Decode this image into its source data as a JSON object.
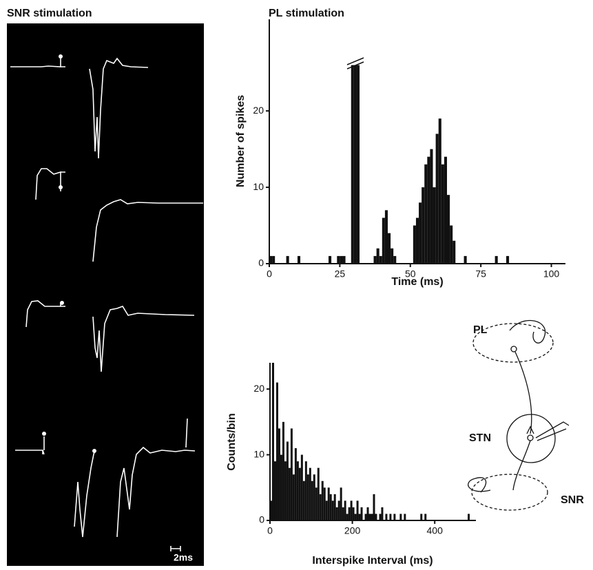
{
  "traces": {
    "title": "SNR stimulation",
    "scale_label": "2ms"
  },
  "diagram": {
    "labels": [
      "PL",
      "STN",
      "SNR"
    ]
  },
  "chart_data": [
    {
      "type": "histogram",
      "title": "PL stimulation",
      "x_label": "Time (ms)",
      "y_label": "Number of spikes",
      "bins": [
        0,
        1,
        2,
        3,
        4,
        5,
        6,
        7,
        8,
        9,
        10,
        11,
        12,
        13,
        14,
        15,
        16,
        17,
        18,
        19,
        20,
        21,
        22,
        23,
        24,
        25,
        26,
        27,
        28,
        29,
        30,
        31,
        32,
        33,
        34,
        35,
        36,
        37,
        38,
        39,
        40,
        41,
        42,
        43,
        44,
        45,
        46,
        47,
        48,
        49,
        50,
        51,
        52,
        53,
        54,
        55,
        56,
        57,
        58,
        59,
        60,
        61,
        62,
        63,
        64,
        65,
        66,
        67,
        68,
        69,
        70,
        71,
        72,
        73,
        74,
        75,
        76,
        77,
        78,
        79,
        80,
        81,
        82,
        83,
        84,
        85,
        86,
        87,
        88,
        89,
        90,
        91,
        92,
        93,
        94,
        95,
        96,
        97,
        98,
        99,
        100,
        101,
        102,
        103,
        104,
        105
      ],
      "counts": [
        1,
        1,
        0,
        0,
        0,
        0,
        1,
        0,
        0,
        0,
        1,
        0,
        0,
        0,
        0,
        0,
        0,
        0,
        0,
        0,
        0,
        1,
        0,
        0,
        1,
        1,
        1,
        0,
        0,
        26,
        26,
        26,
        0,
        0,
        0,
        0,
        0,
        1,
        2,
        1,
        6,
        7,
        4,
        2,
        1,
        0,
        0,
        0,
        0,
        0,
        0,
        5,
        6,
        8,
        10,
        13,
        14,
        15,
        10,
        17,
        19,
        13,
        14,
        9,
        5,
        3,
        0,
        0,
        0,
        1,
        0,
        0,
        0,
        0,
        0,
        0,
        0,
        0,
        0,
        0,
        1,
        0,
        0,
        0,
        1,
        0,
        0,
        0,
        0,
        0,
        0,
        0,
        0,
        0,
        0,
        0,
        0,
        0,
        0,
        0,
        0,
        0,
        0,
        0,
        0
      ],
      "color": "#111111",
      "xlim": [
        0,
        105
      ],
      "xticks": [
        0,
        25,
        50,
        75,
        100
      ],
      "ylim": [
        0,
        32
      ],
      "yticks": [
        0,
        10,
        20
      ]
    },
    {
      "type": "histogram",
      "x_label": "Interspike Interval (ms)",
      "y_label": "Counts/bin",
      "bins": [
        0,
        5,
        10,
        15,
        20,
        25,
        30,
        35,
        40,
        45,
        50,
        55,
        60,
        65,
        70,
        75,
        80,
        85,
        90,
        95,
        100,
        105,
        110,
        115,
        120,
        125,
        130,
        135,
        140,
        145,
        150,
        155,
        160,
        165,
        170,
        175,
        180,
        185,
        190,
        195,
        200,
        205,
        210,
        215,
        220,
        225,
        230,
        235,
        240,
        245,
        250,
        255,
        260,
        265,
        270,
        275,
        280,
        285,
        290,
        295,
        300,
        305,
        310,
        315,
        320,
        325,
        330,
        335,
        340,
        345,
        350,
        355,
        360,
        365,
        370,
        375,
        380,
        385,
        390,
        395,
        400,
        405,
        410,
        415,
        420,
        425,
        430,
        435,
        440,
        445,
        450,
        455,
        460,
        465,
        470,
        475,
        480,
        485,
        490,
        495,
        500
      ],
      "counts": [
        3,
        24,
        9,
        21,
        14,
        10,
        15,
        9,
        12,
        8,
        14,
        7,
        11,
        9,
        8,
        10,
        6,
        9,
        7,
        8,
        6,
        7,
        5,
        8,
        4,
        6,
        5,
        3,
        5,
        4,
        3,
        4,
        2,
        3,
        5,
        2,
        3,
        1,
        2,
        3,
        2,
        1,
        3,
        1,
        2,
        0,
        1,
        2,
        1,
        1,
        4,
        1,
        0,
        1,
        2,
        0,
        1,
        0,
        1,
        0,
        1,
        0,
        0,
        1,
        0,
        1,
        0,
        0,
        0,
        0,
        0,
        0,
        0,
        1,
        0,
        1,
        0,
        0,
        0,
        0,
        0,
        0,
        0,
        0,
        0,
        0,
        0,
        0,
        0,
        0,
        0,
        0,
        0,
        0,
        0,
        0,
        1,
        0,
        0,
        0
      ],
      "color": "#111111",
      "xlim": [
        0,
        500
      ],
      "xticks": [
        0,
        200,
        400
      ],
      "ylim": [
        0,
        24
      ],
      "yticks": [
        0,
        10,
        20
      ]
    }
  ]
}
